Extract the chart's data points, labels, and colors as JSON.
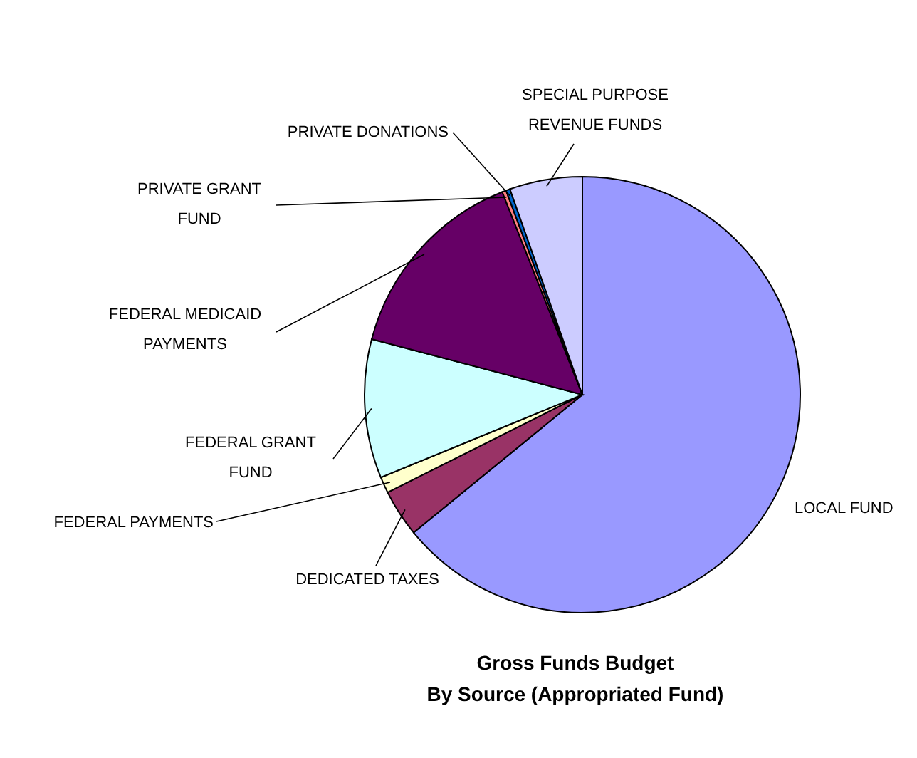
{
  "chart_data": {
    "type": "pie",
    "title": "Gross Funds Budget\nBy Source (Appropriated Fund)",
    "categories": [
      "LOCAL FUND",
      "DEDICATED TAXES",
      "FEDERAL PAYMENTS",
      "FEDERAL GRANT FUND",
      "FEDERAL MEDICAID PAYMENTS",
      "PRIVATE GRANT FUND",
      "PRIVATE DONATIONS",
      "SPECIAL PURPOSE REVENUE FUNDS"
    ],
    "values": [
      64.1,
      3.5,
      1.2,
      10.3,
      14.9,
      0.3,
      0.3,
      5.4
    ],
    "colors": [
      "#9999ff",
      "#993366",
      "#ffffcc",
      "#ccffff",
      "#660066",
      "#ff8080",
      "#0066cc",
      "#ccccff"
    ],
    "legend": false
  }
}
